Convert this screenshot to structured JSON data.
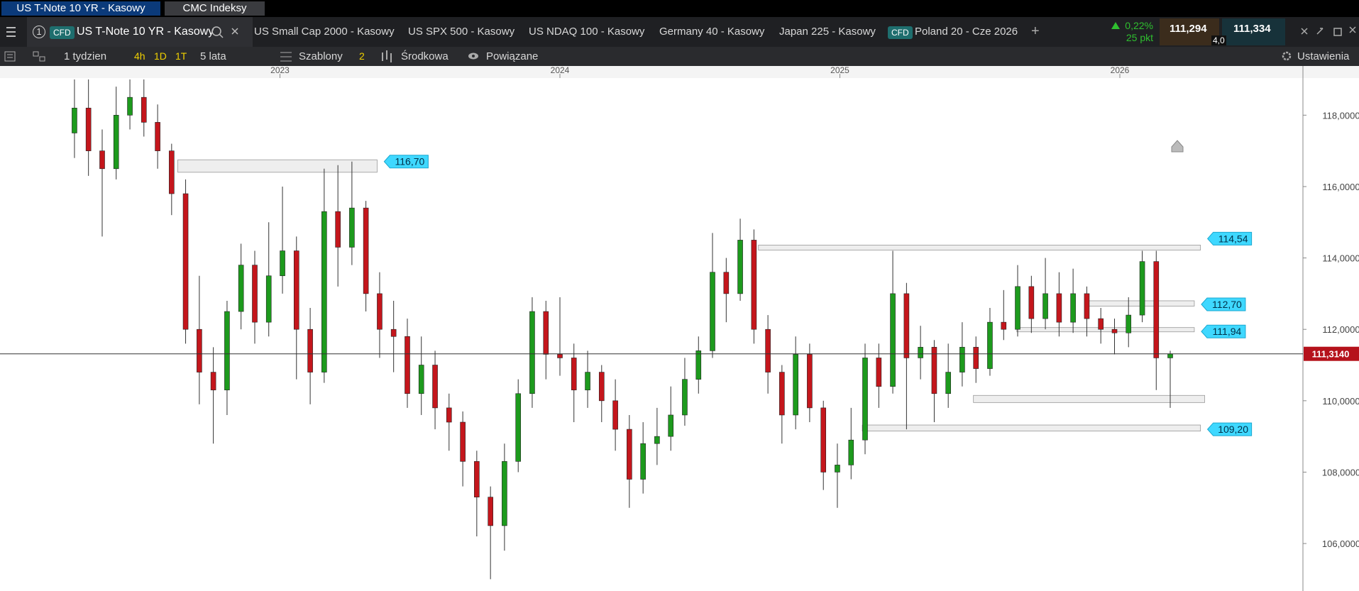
{
  "ui": {
    "window_tabs": [
      "US T-Note 10 YR - Kasowy",
      "CMC Indeksy"
    ],
    "active_instrument": {
      "number": "1",
      "badge": "CFD",
      "name": "US T-Note 10 YR - Kasowy"
    },
    "instrument_tabs": [
      "US Small Cap 2000 - Kasowy",
      "US SPX 500 - Kasowy",
      "US NDAQ 100 - Kasowy",
      "Germany 40 - Kasowy",
      "Japan 225 - Kasowy"
    ],
    "extra_tab": {
      "badge": "CFD",
      "name": "Poland 20 - Cze 2026"
    },
    "add_tab": "+",
    "quote": {
      "change": "0,22%",
      "change_points": "25 pkt",
      "sell": "111,294",
      "spread": "4,0",
      "buy": "111,334"
    },
    "toolbar": {
      "period": "1 tydzien",
      "intervals": [
        "4h",
        "1D",
        "1T"
      ],
      "range": "5 lata",
      "templates": "Szablony",
      "indicator_count": "2",
      "price_type": "Środkowa",
      "linked": "Powiązane",
      "settings": "Ustawienia"
    }
  },
  "chart_data": {
    "type": "candlestick",
    "up_color": "#1d9a1d",
    "down_color": "#c4161c",
    "xlim": [
      2022,
      2026.654
    ],
    "xticks": [
      2023,
      2024,
      2025,
      2026
    ],
    "ylim": [
      104.67,
      119.04
    ],
    "yticks": [
      {
        "value": 106,
        "label": "106,0000"
      },
      {
        "value": 108,
        "label": "108,0000"
      },
      {
        "value": 110,
        "label": "110,0000"
      },
      {
        "value": 112,
        "label": "112,0000"
      },
      {
        "value": 114,
        "label": "114,0000"
      },
      {
        "value": 116,
        "label": "116,0000"
      },
      {
        "value": 118,
        "label": "118,0000"
      }
    ],
    "x": [
      2022.266,
      2022.316,
      2022.365,
      2022.415,
      2022.464,
      2022.514,
      2022.563,
      2022.613,
      2022.663,
      2022.712,
      2022.762,
      2022.811,
      2022.861,
      2022.91,
      2022.96,
      2023.009,
      2023.059,
      2023.108,
      2023.158,
      2023.207,
      2023.257,
      2023.307,
      2023.356,
      2023.406,
      2023.455,
      2023.505,
      2023.554,
      2023.604,
      2023.653,
      2023.703,
      2023.752,
      2023.802,
      2023.851,
      2023.901,
      2023.95,
      2024.0,
      2024.05,
      2024.099,
      2024.149,
      2024.198,
      2024.248,
      2024.297,
      2024.347,
      2024.396,
      2024.446,
      2024.495,
      2024.545,
      2024.594,
      2024.644,
      2024.693,
      2024.743,
      2024.793,
      2024.842,
      2024.892,
      2024.941,
      2024.991,
      2025.04,
      2025.09,
      2025.139,
      2025.189,
      2025.238,
      2025.288,
      2025.337,
      2025.387,
      2025.437,
      2025.486,
      2025.536,
      2025.585,
      2025.635,
      2025.684,
      2025.734,
      2025.783,
      2025.833,
      2025.882,
      2025.932,
      2025.981,
      2026.031,
      2026.08,
      2026.13,
      2026.18
    ],
    "open": [
      117.5,
      118.2,
      117.0,
      116.5,
      118.0,
      118.5,
      117.8,
      117.0,
      115.8,
      112.0,
      110.8,
      110.3,
      112.5,
      113.8,
      112.2,
      113.5,
      114.2,
      112.0,
      110.8,
      115.3,
      114.3,
      115.4,
      113.0,
      112.0,
      111.8,
      110.2,
      111.0,
      109.8,
      109.4,
      108.3,
      107.3,
      106.5,
      108.3,
      110.2,
      112.5,
      111.3,
      111.2,
      110.3,
      110.8,
      110.0,
      109.2,
      107.8,
      108.8,
      109.0,
      109.6,
      110.6,
      111.4,
      113.6,
      113.0,
      114.5,
      112.0,
      110.8,
      109.6,
      111.3,
      109.8,
      108.0,
      108.2,
      108.9,
      111.2,
      110.4,
      113.0,
      111.2,
      111.5,
      110.2,
      110.8,
      111.5,
      110.9,
      112.2,
      112.0,
      113.2,
      112.3,
      113.0,
      112.2,
      113.0,
      112.3,
      112.0,
      111.9,
      112.4,
      113.9,
      111.2
    ],
    "high": [
      119.0,
      119.0,
      117.6,
      118.8,
      119.0,
      119.0,
      118.3,
      117.2,
      116.2,
      113.5,
      111.5,
      112.8,
      114.4,
      114.2,
      115.0,
      116.0,
      114.6,
      112.6,
      116.5,
      116.6,
      116.7,
      115.6,
      113.6,
      112.8,
      112.3,
      111.8,
      111.4,
      110.2,
      109.7,
      108.6,
      107.6,
      108.8,
      110.6,
      112.9,
      112.8,
      112.9,
      111.6,
      111.4,
      111.0,
      110.6,
      109.6,
      109.4,
      109.8,
      110.4,
      111.2,
      111.8,
      114.7,
      114.0,
      115.1,
      114.8,
      112.4,
      111.0,
      111.8,
      111.6,
      110.0,
      108.8,
      109.8,
      111.6,
      111.6,
      114.2,
      113.3,
      112.1,
      111.7,
      111.6,
      112.2,
      111.8,
      112.6,
      113.1,
      113.8,
      113.5,
      114.0,
      113.6,
      113.7,
      113.2,
      112.6,
      112.3,
      112.9,
      114.2,
      114.2,
      111.4
    ],
    "low": [
      116.8,
      116.3,
      114.6,
      116.2,
      117.6,
      117.4,
      116.5,
      115.2,
      111.6,
      109.9,
      108.8,
      109.6,
      112.0,
      111.6,
      111.8,
      113.0,
      110.6,
      109.9,
      110.5,
      113.2,
      113.8,
      112.5,
      111.2,
      110.8,
      109.8,
      109.6,
      109.2,
      108.6,
      107.6,
      106.2,
      105.0,
      105.8,
      108.0,
      109.8,
      110.6,
      110.7,
      109.4,
      109.8,
      109.4,
      108.6,
      107.0,
      107.4,
      108.2,
      108.6,
      109.3,
      110.2,
      111.2,
      112.2,
      112.8,
      111.6,
      110.2,
      108.8,
      109.2,
      109.4,
      107.5,
      107.0,
      107.8,
      108.5,
      109.8,
      110.2,
      109.2,
      110.6,
      109.4,
      109.8,
      110.4,
      110.5,
      110.7,
      111.7,
      111.8,
      111.9,
      112.0,
      111.8,
      111.9,
      111.8,
      111.6,
      111.3,
      111.5,
      112.2,
      110.3,
      109.8
    ],
    "close": [
      118.2,
      117.0,
      116.5,
      118.0,
      118.5,
      117.8,
      117.0,
      115.8,
      112.0,
      110.8,
      110.3,
      112.5,
      113.8,
      112.2,
      113.5,
      114.2,
      112.0,
      110.8,
      115.3,
      114.3,
      115.4,
      113.0,
      112.0,
      111.8,
      110.2,
      111.0,
      109.8,
      109.4,
      108.3,
      107.3,
      106.5,
      108.3,
      110.2,
      112.5,
      111.3,
      111.2,
      110.3,
      110.8,
      110.0,
      109.2,
      107.8,
      108.8,
      109.0,
      109.6,
      110.6,
      111.4,
      113.6,
      113.0,
      114.5,
      112.0,
      110.8,
      109.6,
      111.3,
      109.8,
      108.0,
      108.2,
      108.9,
      111.2,
      110.4,
      113.0,
      111.2,
      111.5,
      110.2,
      110.8,
      111.5,
      110.9,
      112.2,
      112.0,
      113.2,
      112.3,
      113.0,
      112.2,
      113.0,
      112.3,
      112.0,
      111.9,
      112.4,
      113.9,
      111.2,
      111.314
    ],
    "levels": [
      {
        "top": 116.75,
        "bottom": 116.4,
        "start": 2022.635,
        "end": 2023.347,
        "label": {
          "value": 116.7,
          "label": "116,70"
        }
      },
      {
        "top": 114.36,
        "bottom": 114.22,
        "start": 2024.709,
        "end": 2026.288,
        "label": {
          "value": 114.54,
          "label": "114,54"
        }
      },
      {
        "top": 112.8,
        "bottom": 112.65,
        "start": 2025.886,
        "end": 2026.266,
        "label": {
          "value": 112.7,
          "label": "112,70"
        }
      },
      {
        "top": 112.05,
        "bottom": 111.93,
        "start": 2025.632,
        "end": 2026.266,
        "label": {
          "value": 111.94,
          "label": "111,94"
        }
      },
      {
        "top": 110.15,
        "bottom": 109.95,
        "start": 2025.477,
        "end": 2026.303
      },
      {
        "top": 109.32,
        "bottom": 109.15,
        "start": 2025.08,
        "end": 2026.288,
        "label": {
          "value": 109.2,
          "label": "109,20"
        }
      }
    ],
    "last_price": {
      "value": 111.314,
      "label": "111,3140"
    }
  }
}
